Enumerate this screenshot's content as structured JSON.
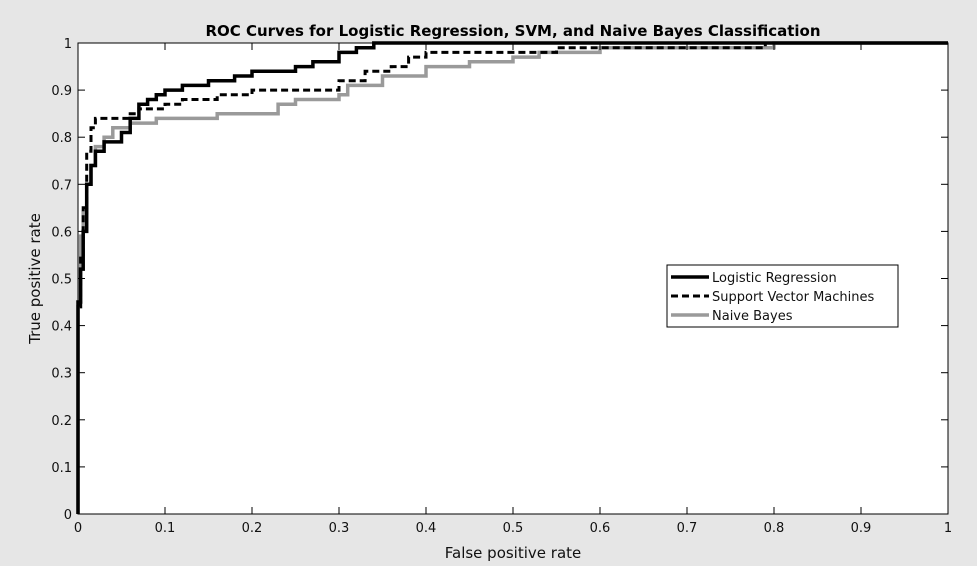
{
  "chart_data": {
    "type": "line",
    "title": "ROC Curves for Logistic Regression, SVM, and Naive Bayes Classification",
    "xlabel": "False positive rate",
    "ylabel": "True positive rate",
    "xlim": [
      0,
      1
    ],
    "ylim": [
      0,
      1
    ],
    "xticks": [
      0,
      0.1,
      0.2,
      0.3,
      0.4,
      0.5,
      0.6,
      0.7,
      0.8,
      0.9,
      1
    ],
    "xtick_labels": [
      "0",
      "0.1",
      "0.2",
      "0.3",
      "0.4",
      "0.5",
      "0.6",
      "0.7",
      "0.8",
      "0.9",
      "1"
    ],
    "yticks": [
      0,
      0.1,
      0.2,
      0.3,
      0.4,
      0.5,
      0.6,
      0.7,
      0.8,
      0.9,
      1
    ],
    "ytick_labels": [
      "0",
      "0.1",
      "0.2",
      "0.3",
      "0.4",
      "0.5",
      "0.6",
      "0.7",
      "0.8",
      "0.9",
      "1"
    ],
    "grid": false,
    "legend_position": "right-middle",
    "series": [
      {
        "name": "Logistic Regression",
        "color": "#000000",
        "style": "solid",
        "x": [
          0,
          0,
          0.003,
          0.003,
          0.006,
          0.006,
          0.01,
          0.01,
          0.015,
          0.015,
          0.02,
          0.02,
          0.03,
          0.03,
          0.05,
          0.05,
          0.06,
          0.06,
          0.07,
          0.07,
          0.08,
          0.08,
          0.09,
          0.09,
          0.1,
          0.1,
          0.12,
          0.12,
          0.15,
          0.15,
          0.18,
          0.18,
          0.2,
          0.2,
          0.25,
          0.25,
          0.27,
          0.27,
          0.3,
          0.3,
          0.32,
          0.32,
          0.34,
          0.34,
          0.4,
          0.4,
          0.43,
          0.43,
          0.5,
          0.5,
          0.6,
          1
        ],
        "y": [
          0,
          0.45,
          0.45,
          0.52,
          0.52,
          0.6,
          0.6,
          0.7,
          0.7,
          0.74,
          0.74,
          0.77,
          0.77,
          0.79,
          0.79,
          0.81,
          0.81,
          0.84,
          0.84,
          0.87,
          0.87,
          0.88,
          0.88,
          0.89,
          0.89,
          0.9,
          0.9,
          0.91,
          0.91,
          0.92,
          0.92,
          0.93,
          0.93,
          0.94,
          0.94,
          0.95,
          0.95,
          0.96,
          0.96,
          0.98,
          0.98,
          0.99,
          0.99,
          1.0,
          1.0,
          1.0,
          1.0,
          1.0,
          1.0,
          1.0,
          1.0,
          1.0
        ]
      },
      {
        "name": "Support Vector Machines",
        "color": "#000000",
        "style": "dashed",
        "x": [
          0,
          0,
          0.003,
          0.003,
          0.006,
          0.006,
          0.01,
          0.01,
          0.015,
          0.015,
          0.02,
          0.02,
          0.06,
          0.06,
          0.07,
          0.07,
          0.1,
          0.1,
          0.12,
          0.12,
          0.16,
          0.16,
          0.2,
          0.2,
          0.3,
          0.3,
          0.33,
          0.33,
          0.36,
          0.36,
          0.38,
          0.38,
          0.4,
          0.4,
          0.45,
          0.45,
          0.55,
          0.55,
          0.6,
          0.6,
          0.79,
          0.79,
          0.81,
          0.81,
          1
        ],
        "y": [
          0,
          0.44,
          0.44,
          0.55,
          0.55,
          0.65,
          0.65,
          0.77,
          0.77,
          0.82,
          0.82,
          0.84,
          0.84,
          0.85,
          0.85,
          0.86,
          0.86,
          0.87,
          0.87,
          0.88,
          0.88,
          0.89,
          0.89,
          0.9,
          0.9,
          0.92,
          0.92,
          0.94,
          0.94,
          0.95,
          0.95,
          0.97,
          0.97,
          0.98,
          0.98,
          0.98,
          0.98,
          0.99,
          0.99,
          0.99,
          0.99,
          1.0,
          1.0,
          1.0,
          1.0
        ]
      },
      {
        "name": "Naive Bayes",
        "color": "#9a9a9a",
        "style": "solid",
        "x": [
          0,
          0,
          0.003,
          0.003,
          0.006,
          0.006,
          0.01,
          0.01,
          0.015,
          0.015,
          0.02,
          0.02,
          0.03,
          0.03,
          0.04,
          0.04,
          0.06,
          0.06,
          0.09,
          0.09,
          0.16,
          0.16,
          0.23,
          0.23,
          0.25,
          0.25,
          0.3,
          0.3,
          0.31,
          0.31,
          0.35,
          0.35,
          0.4,
          0.4,
          0.45,
          0.45,
          0.5,
          0.5,
          0.53,
          0.53,
          0.6,
          0.6,
          0.8,
          0.8,
          1
        ],
        "y": [
          0,
          0.44,
          0.44,
          0.59,
          0.59,
          0.64,
          0.64,
          0.7,
          0.7,
          0.74,
          0.74,
          0.78,
          0.78,
          0.8,
          0.8,
          0.82,
          0.82,
          0.83,
          0.83,
          0.84,
          0.84,
          0.85,
          0.85,
          0.87,
          0.87,
          0.88,
          0.88,
          0.89,
          0.89,
          0.91,
          0.91,
          0.93,
          0.93,
          0.95,
          0.95,
          0.96,
          0.96,
          0.97,
          0.97,
          0.98,
          0.98,
          0.99,
          0.99,
          1.0,
          1.0
        ]
      }
    ]
  }
}
